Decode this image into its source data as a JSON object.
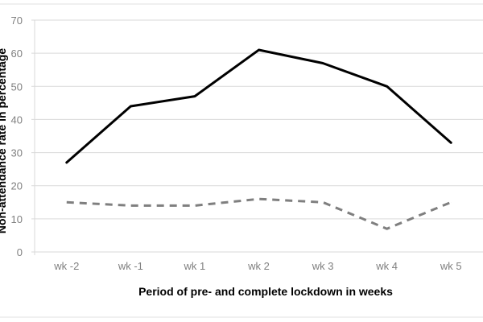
{
  "chart_data": {
    "type": "line",
    "title": "",
    "xlabel": "Period of pre- and complete lockdown in weeks",
    "ylabel": "Non-attendance rate in percentage",
    "categories": [
      "wk -2",
      "wk -1",
      "wk 1",
      "wk 2",
      "wk 3",
      "wk 4",
      "wk 5"
    ],
    "ylim": [
      0,
      70
    ],
    "yticks": [
      "0",
      "10",
      "20",
      "30",
      "40",
      "50",
      "60",
      "70"
    ],
    "grid": true,
    "series": [
      {
        "values": [
          27,
          44,
          47,
          61,
          57,
          50,
          33
        ],
        "color": "#000000",
        "style": "solid"
      },
      {
        "values": [
          15,
          14,
          14,
          16,
          15,
          7,
          15
        ],
        "color": "#7f7f7f",
        "style": "dashed"
      }
    ]
  }
}
